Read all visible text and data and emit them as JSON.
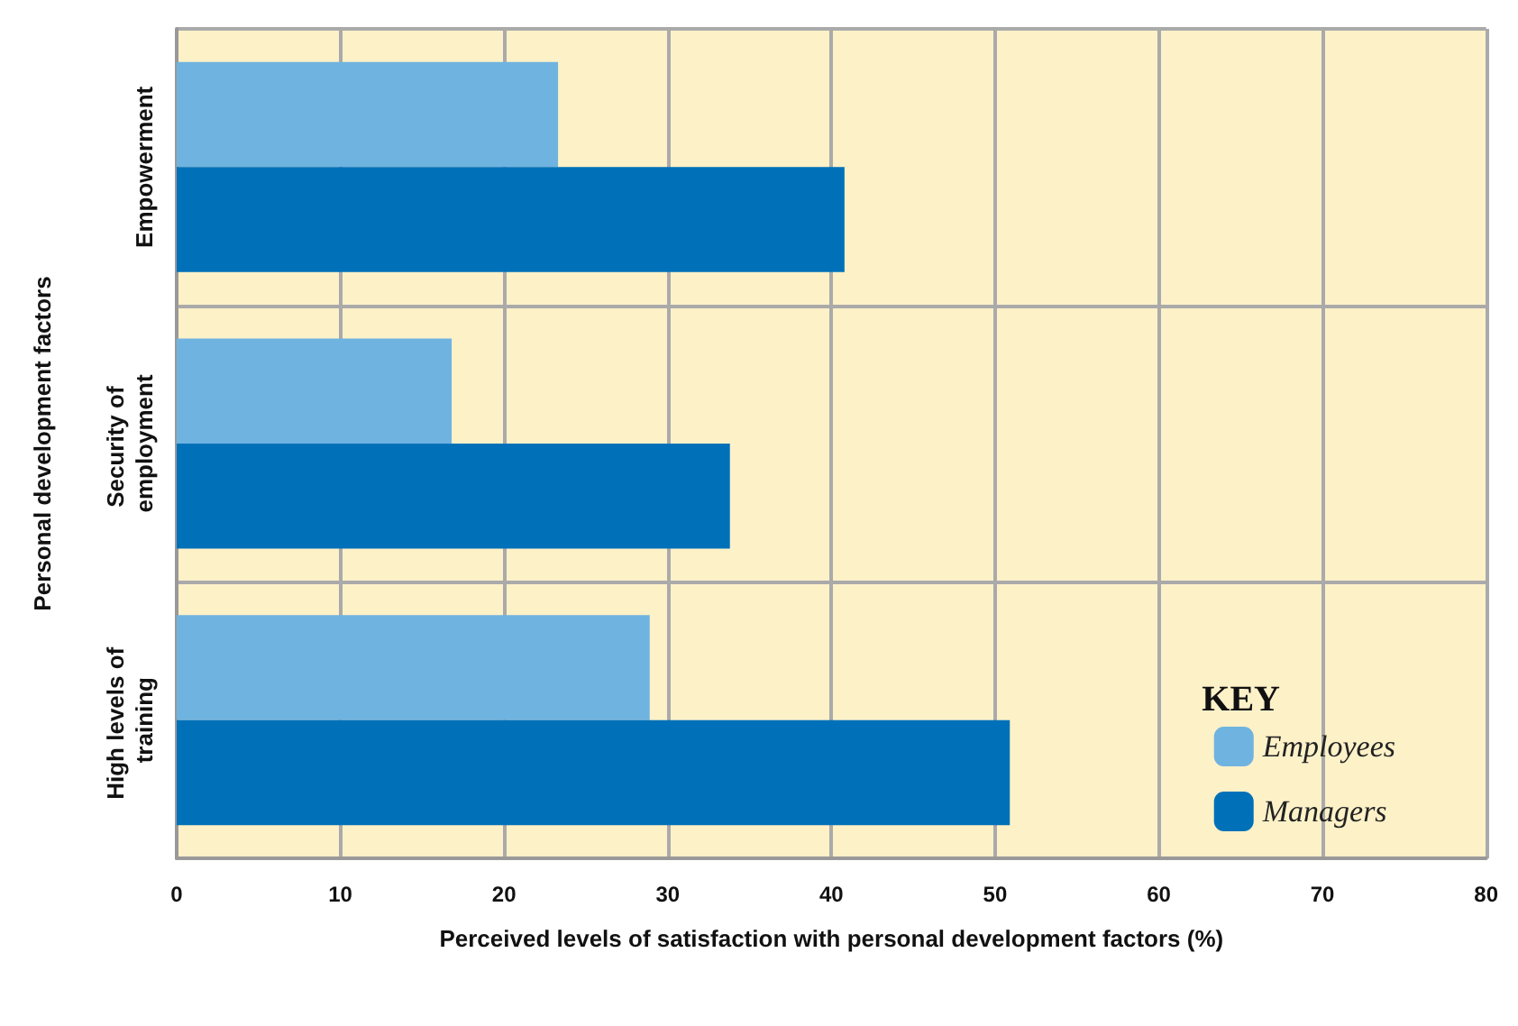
{
  "chart_data": {
    "type": "bar",
    "orientation": "horizontal",
    "xlabel": "Perceived levels of satisfaction with personal development factors (%)",
    "ylabel": "Personal development factors",
    "legend_title": "KEY",
    "categories": [
      "Empowerment",
      "Security of employment",
      "High levels of training"
    ],
    "series": [
      {
        "name": "Employees",
        "color": "#6fb3e0",
        "values": [
          23.3,
          16.8,
          28.9
        ]
      },
      {
        "name": "Managers",
        "color": "#0071b9",
        "values": [
          40.8,
          33.8,
          50.9
        ]
      }
    ],
    "xlim": [
      0,
      80
    ],
    "xticks": [
      0,
      10,
      20,
      30,
      40,
      50,
      60,
      70,
      80
    ],
    "grid": true,
    "legend": "bottom right"
  }
}
